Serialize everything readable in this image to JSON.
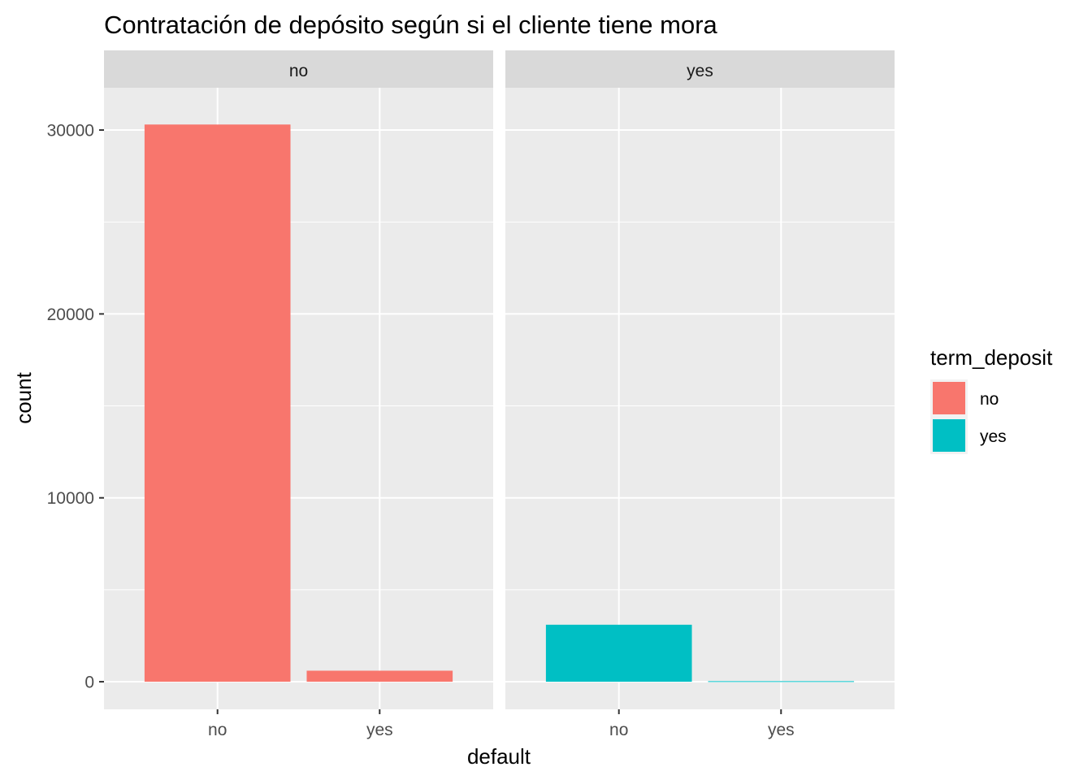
{
  "chart_data": {
    "type": "bar",
    "title": "Contratación de depósito según si el cliente tiene mora",
    "xlabel": "default",
    "ylabel": "count",
    "categories": [
      "no",
      "yes"
    ],
    "facet_variable": "term_deposit",
    "facets": [
      {
        "label": "no",
        "values": [
          30300,
          600
        ],
        "color": "#F8766D"
      },
      {
        "label": "yes",
        "values": [
          3100,
          30
        ],
        "color": "#00BFC4"
      }
    ],
    "ylim": [
      -1500,
      32300
    ],
    "yticks": [
      0,
      10000,
      20000,
      30000
    ],
    "y_tick_labels": [
      "0",
      "10000",
      "20000",
      "30000"
    ],
    "grid": true,
    "legend": {
      "title": "term_deposit",
      "placement": "right",
      "items": [
        {
          "label": "no",
          "color": "#F8766D"
        },
        {
          "label": "yes",
          "color": "#00BFC4"
        }
      ]
    },
    "colors": {
      "panel_background": "#EBEBEB",
      "strip_background": "#D9D9D9",
      "grid_line": "#FFFFFF"
    }
  }
}
